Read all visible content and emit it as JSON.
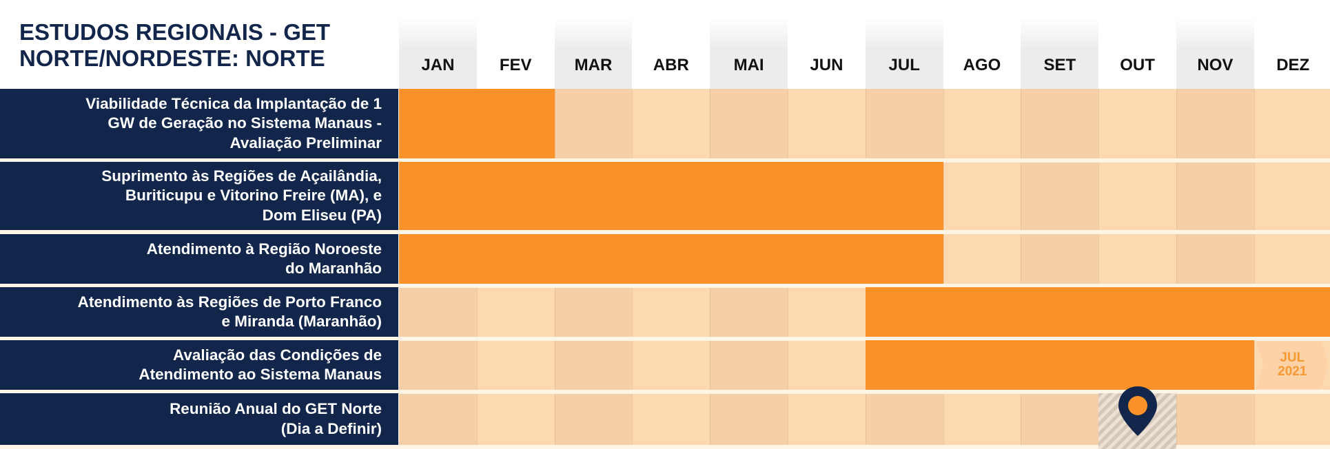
{
  "title": {
    "line1": "ESTUDOS REGIONAIS - GET",
    "line2": "NORTE/NORDESTE: NORTE"
  },
  "months": [
    "JAN",
    "FEV",
    "MAR",
    "ABR",
    "MAI",
    "JUN",
    "JUL",
    "AGO",
    "SET",
    "OUT",
    "NOV",
    "DEZ"
  ],
  "rows": [
    {
      "label": "Viabilidade Técnica da Implantação de 1\nGW de Geração no Sistema Manaus -\nAvaliação Preliminar",
      "start_month": 1,
      "end_month": 2
    },
    {
      "label": "Suprimento às Regiões de Açailândia,\nBuriticupu e Vitorino Freire (MA), e\nDom Eliseu (PA)",
      "start_month": 1,
      "end_month": 7
    },
    {
      "label": "Atendimento à Região Noroeste\ndo Maranhão",
      "start_month": 1,
      "end_month": 7
    },
    {
      "label": "Atendimento às Regiões de Porto Franco\ne Miranda (Maranhão)",
      "start_month": 7,
      "end_month": 12
    },
    {
      "label": "Avaliação das Condições de\nAtendimento ao Sistema Manaus",
      "start_month": 7,
      "end_month": 11,
      "continuation": {
        "month": "JUL",
        "year": "2021"
      }
    },
    {
      "label": "Reunião Anual do GET Norte\n(Dia a Definir)",
      "milestone_month": 10
    }
  ],
  "colors": {
    "navy": "#11264a",
    "bar_orange": "#fb9129",
    "month_shade_odd": "#f4cfa8",
    "month_shade_even": "#fdd9b2",
    "continuation_text": "#f79a34"
  },
  "icons": {
    "milestone": "map-pin-icon",
    "continuation": "chevron-arrow-icon"
  }
}
